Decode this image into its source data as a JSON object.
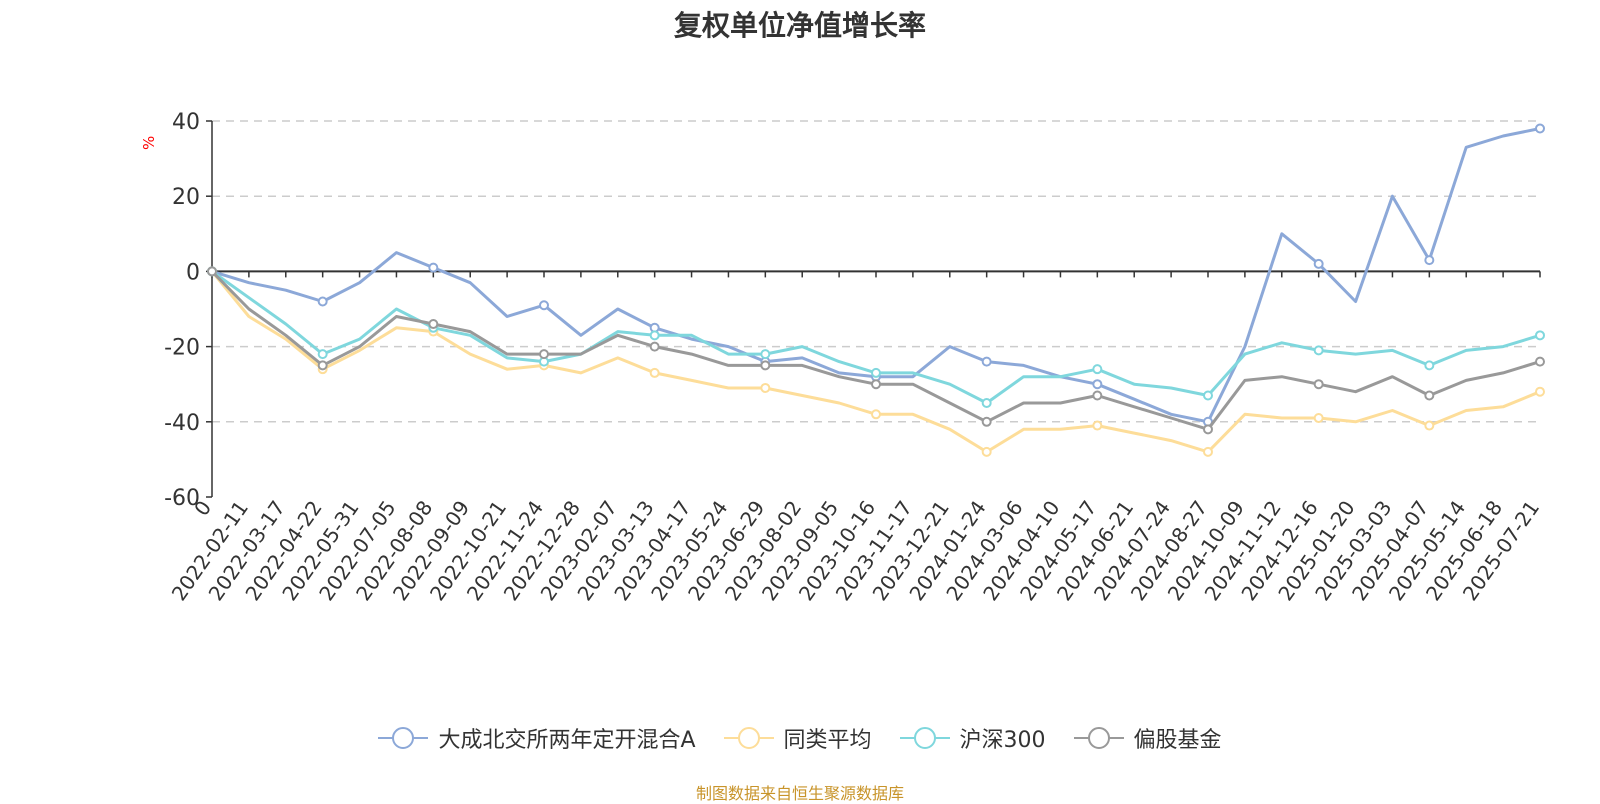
{
  "chart_data": {
    "type": "line",
    "title": "复权单位净值增长率",
    "ylabel": "%",
    "ylim": [
      -60,
      40
    ],
    "yticks": [
      40,
      20,
      0,
      -20,
      -40,
      -60
    ],
    "grid": true,
    "legend_position": "bottom",
    "x_categories": [
      "0",
      "2022-02-11",
      "2022-03-17",
      "2022-04-22",
      "2022-05-31",
      "2022-07-05",
      "2022-08-08",
      "2022-09-09",
      "2022-10-21",
      "2022-11-24",
      "2022-12-28",
      "2023-02-07",
      "2023-03-13",
      "2023-04-17",
      "2023-05-24",
      "2023-06-29",
      "2023-08-02",
      "2023-09-05",
      "2023-10-16",
      "2023-11-17",
      "2023-12-21",
      "2024-01-24",
      "2024-03-06",
      "2024-04-10",
      "2024-05-17",
      "2024-06-21",
      "2024-07-24",
      "2024-08-27",
      "2024-10-09",
      "2024-11-12",
      "2024-12-16",
      "2025-01-20",
      "2025-03-03",
      "2025-04-07",
      "2025-05-14",
      "2025-06-18",
      "2025-07-21"
    ],
    "series": [
      {
        "name": "大成北交所两年定开混合A",
        "color": "#8ca8d8",
        "values": [
          0,
          -3,
          -5,
          -8,
          -3,
          5,
          1,
          -3,
          -12,
          -9,
          -17,
          -10,
          -15,
          -18,
          -20,
          -24,
          -23,
          -27,
          -28,
          -28,
          -20,
          -24,
          -25,
          -28,
          -30,
          -34,
          -38,
          -40,
          -20,
          10,
          2,
          -8,
          20,
          3,
          33,
          36,
          38
        ]
      },
      {
        "name": "同类平均",
        "color": "#fddd99",
        "values": [
          0,
          -12,
          -18,
          -26,
          -21,
          -15,
          -16,
          -22,
          -26,
          -25,
          -27,
          -23,
          -27,
          -29,
          -31,
          -31,
          -33,
          -35,
          -38,
          -38,
          -42,
          -48,
          -42,
          -42,
          -41,
          -43,
          -45,
          -48,
          -38,
          -39,
          -39,
          -40,
          -37,
          -41,
          -37,
          -36,
          -32
        ]
      },
      {
        "name": "沪深300",
        "color": "#7fd7dd",
        "values": [
          0,
          -7,
          -14,
          -22,
          -18,
          -10,
          -15,
          -17,
          -23,
          -24,
          -22,
          -16,
          -17,
          -17,
          -22,
          -22,
          -20,
          -24,
          -27,
          -27,
          -30,
          -35,
          -28,
          -28,
          -26,
          -30,
          -31,
          -33,
          -22,
          -19,
          -21,
          -22,
          -21,
          -25,
          -21,
          -20,
          -17
        ]
      },
      {
        "name": "偏股基金",
        "color": "#999999",
        "values": [
          0,
          -10,
          -17,
          -25,
          -20,
          -12,
          -14,
          -16,
          -22,
          -22,
          -22,
          -17,
          -20,
          -22,
          -25,
          -25,
          -25,
          -28,
          -30,
          -30,
          -35,
          -40,
          -35,
          -35,
          -33,
          -36,
          -39,
          -42,
          -29,
          -28,
          -30,
          -32,
          -28,
          -33,
          -29,
          -27,
          -24
        ]
      }
    ]
  },
  "source": "制图数据来自恒生聚源数据库"
}
